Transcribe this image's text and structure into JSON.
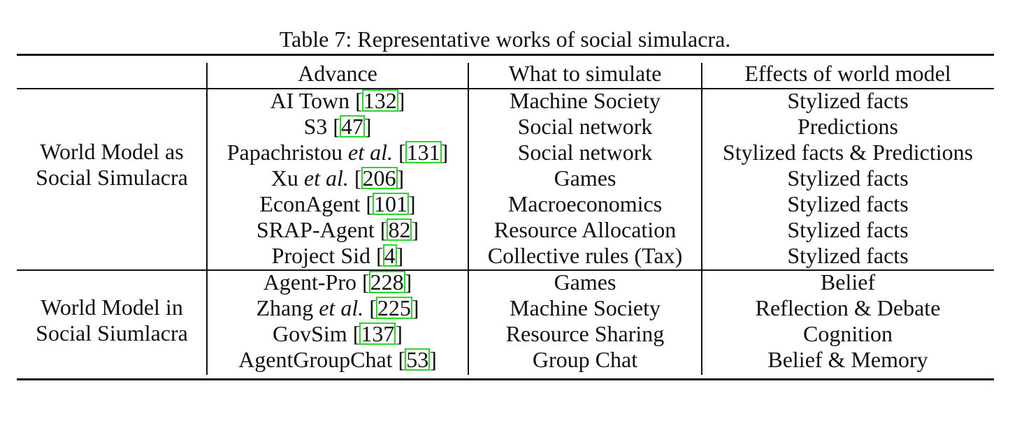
{
  "caption": "Table 7: Representative works of social simulacra.",
  "headers": [
    "",
    "Advance",
    "What to simulate",
    "Effects of world model"
  ],
  "groups": [
    {
      "label_line1": "World Model as",
      "label_line2": "Social Simulacra",
      "rows": [
        {
          "advance": "AI Town",
          "italic": "",
          "ref": "132",
          "simulate": "Machine Society",
          "effect": "Stylized facts"
        },
        {
          "advance": "S3",
          "italic": "",
          "ref": "47",
          "simulate": "Social network",
          "effect": "Predictions"
        },
        {
          "advance": "Papachristou",
          "italic": "et al.",
          "ref": "131",
          "simulate": "Social network",
          "effect": "Stylized facts & Predictions"
        },
        {
          "advance": "Xu",
          "italic": "et al.",
          "ref": "206",
          "simulate": "Games",
          "effect": "Stylized facts"
        },
        {
          "advance": "EconAgent",
          "italic": "",
          "ref": "101",
          "simulate": "Macroeconomics",
          "effect": "Stylized facts"
        },
        {
          "advance": "SRAP-Agent",
          "italic": "",
          "ref": "82",
          "simulate": "Resource Allocation",
          "effect": "Stylized facts"
        },
        {
          "advance": "Project Sid",
          "italic": "",
          "ref": "4",
          "simulate": "Collective rules (Tax)",
          "effect": "Stylized facts"
        }
      ]
    },
    {
      "label_line1": "World Model in",
      "label_line2": "Social Siumlacra",
      "rows": [
        {
          "advance": "Agent-Pro",
          "italic": "",
          "ref": "228",
          "simulate": "Games",
          "effect": "Belief"
        },
        {
          "advance": "Zhang",
          "italic": "et al.",
          "ref": "225",
          "simulate": "Machine Society",
          "effect": "Reflection & Debate"
        },
        {
          "advance": "GovSim",
          "italic": "",
          "ref": "137",
          "simulate": "Resource Sharing",
          "effect": "Cognition"
        },
        {
          "advance": "AgentGroupChat",
          "italic": "",
          "ref": "53",
          "simulate": "Group Chat",
          "effect": "Belief & Memory"
        }
      ]
    }
  ]
}
